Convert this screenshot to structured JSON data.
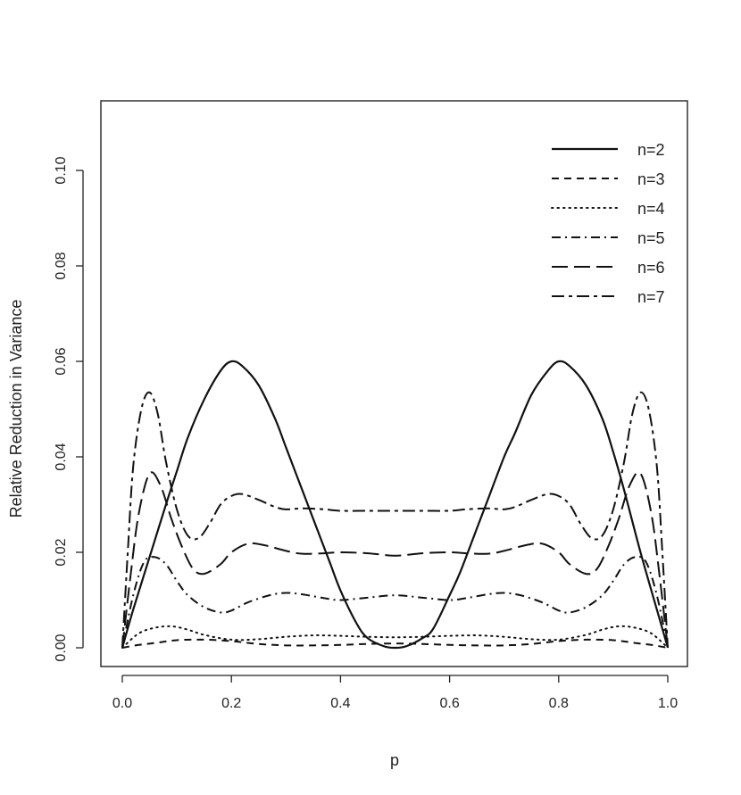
{
  "chart_data": {
    "type": "line",
    "title": "",
    "xlabel": "p",
    "ylabel": "Relative Reduction in Variance",
    "xlim": [
      0.0,
      1.0
    ],
    "ylim": [
      0.0,
      0.11
    ],
    "xticks": [
      "0.0",
      "0.2",
      "0.4",
      "0.6",
      "0.8",
      "1.0"
    ],
    "yticks": [
      "0.00",
      "0.02",
      "0.04",
      "0.06",
      "0.08",
      "0.10"
    ],
    "legend_position": "top-right",
    "grid": false,
    "series": [
      {
        "name": "n=2",
        "dash": "solid",
        "x": [
          0,
          0.02,
          0.05,
          0.08,
          0.1,
          0.12,
          0.15,
          0.18,
          0.2,
          0.22,
          0.25,
          0.28,
          0.3,
          0.33,
          0.35,
          0.38,
          0.4,
          0.43,
          0.45,
          0.48,
          0.5,
          0.52,
          0.55,
          0.57,
          0.6,
          0.62,
          0.65,
          0.67,
          0.7,
          0.72,
          0.75,
          0.78,
          0.8,
          0.82,
          0.85,
          0.88,
          0.9,
          0.92,
          0.95,
          0.98,
          1.0
        ],
        "y": [
          0,
          0.008,
          0.019,
          0.03,
          0.037,
          0.044,
          0.052,
          0.058,
          0.06,
          0.059,
          0.055,
          0.048,
          0.042,
          0.033,
          0.027,
          0.018,
          0.012,
          0.005,
          0.002,
          0.0003,
          0,
          0.0003,
          0.002,
          0.004,
          0.011,
          0.016,
          0.025,
          0.031,
          0.04,
          0.045,
          0.053,
          0.058,
          0.06,
          0.059,
          0.055,
          0.048,
          0.041,
          0.033,
          0.02,
          0.008,
          0
        ]
      },
      {
        "name": "n=3",
        "dash": "dashed",
        "x": [
          0,
          0.03,
          0.06,
          0.1,
          0.15,
          0.2,
          0.25,
          0.3,
          0.35,
          0.4,
          0.45,
          0.5,
          0.55,
          0.6,
          0.65,
          0.7,
          0.75,
          0.8,
          0.85,
          0.9,
          0.94,
          0.97,
          1.0
        ],
        "y": [
          0,
          0.0006,
          0.001,
          0.0016,
          0.0017,
          0.0014,
          0.0008,
          0.0005,
          0.0005,
          0.0006,
          0.0008,
          0.0009,
          0.0008,
          0.0006,
          0.0005,
          0.0005,
          0.0008,
          0.0014,
          0.0017,
          0.0016,
          0.001,
          0.0006,
          0
        ]
      },
      {
        "name": "n=4",
        "dash": "dotted",
        "x": [
          0,
          0.03,
          0.06,
          0.09,
          0.12,
          0.15,
          0.2,
          0.25,
          0.3,
          0.35,
          0.4,
          0.45,
          0.5,
          0.55,
          0.6,
          0.65,
          0.7,
          0.75,
          0.8,
          0.85,
          0.88,
          0.91,
          0.94,
          0.97,
          1.0
        ],
        "y": [
          0,
          0.003,
          0.0042,
          0.0045,
          0.0038,
          0.0027,
          0.0017,
          0.0018,
          0.0023,
          0.0026,
          0.0025,
          0.0023,
          0.0022,
          0.0023,
          0.0025,
          0.0026,
          0.0023,
          0.0018,
          0.0017,
          0.0027,
          0.0038,
          0.0045,
          0.0042,
          0.003,
          0
        ]
      },
      {
        "name": "n=5",
        "dash": "dashdot",
        "x": [
          0,
          0.02,
          0.04,
          0.06,
          0.08,
          0.1,
          0.12,
          0.15,
          0.18,
          0.2,
          0.23,
          0.27,
          0.3,
          0.33,
          0.37,
          0.4,
          0.45,
          0.5,
          0.55,
          0.6,
          0.63,
          0.67,
          0.7,
          0.73,
          0.77,
          0.8,
          0.82,
          0.85,
          0.88,
          0.9,
          0.92,
          0.94,
          0.96,
          0.98,
          1.0
        ],
        "y": [
          0,
          0.011,
          0.018,
          0.019,
          0.0175,
          0.014,
          0.011,
          0.0085,
          0.0074,
          0.0078,
          0.0095,
          0.011,
          0.0115,
          0.0112,
          0.0104,
          0.01,
          0.0105,
          0.011,
          0.0105,
          0.01,
          0.0104,
          0.0112,
          0.0115,
          0.011,
          0.0095,
          0.0078,
          0.0074,
          0.0085,
          0.011,
          0.014,
          0.0175,
          0.019,
          0.018,
          0.011,
          0
        ]
      },
      {
        "name": "n=6",
        "dash": "longdash",
        "x": [
          0,
          0.015,
          0.03,
          0.05,
          0.07,
          0.09,
          0.11,
          0.13,
          0.15,
          0.18,
          0.2,
          0.23,
          0.26,
          0.3,
          0.33,
          0.37,
          0.4,
          0.45,
          0.5,
          0.55,
          0.6,
          0.63,
          0.67,
          0.7,
          0.74,
          0.77,
          0.8,
          0.82,
          0.85,
          0.87,
          0.89,
          0.91,
          0.93,
          0.95,
          0.97,
          0.985,
          1.0
        ],
        "y": [
          0,
          0.015,
          0.028,
          0.0365,
          0.034,
          0.027,
          0.021,
          0.0165,
          0.0155,
          0.0175,
          0.02,
          0.0218,
          0.0215,
          0.0203,
          0.0197,
          0.0198,
          0.02,
          0.0198,
          0.0193,
          0.0198,
          0.02,
          0.0198,
          0.0197,
          0.0203,
          0.0215,
          0.0218,
          0.02,
          0.0175,
          0.0155,
          0.0165,
          0.021,
          0.027,
          0.034,
          0.0365,
          0.028,
          0.015,
          0
        ]
      },
      {
        "name": "n=7",
        "dash": "twodash",
        "x": [
          0,
          0.01,
          0.02,
          0.035,
          0.05,
          0.065,
          0.08,
          0.1,
          0.12,
          0.14,
          0.16,
          0.18,
          0.2,
          0.22,
          0.25,
          0.28,
          0.3,
          0.33,
          0.37,
          0.4,
          0.45,
          0.5,
          0.55,
          0.6,
          0.63,
          0.67,
          0.7,
          0.72,
          0.75,
          0.78,
          0.8,
          0.82,
          0.84,
          0.86,
          0.88,
          0.9,
          0.92,
          0.935,
          0.95,
          0.965,
          0.98,
          0.99,
          1.0
        ],
        "y": [
          0,
          0.02,
          0.038,
          0.05,
          0.0535,
          0.049,
          0.039,
          0.029,
          0.0235,
          0.023,
          0.026,
          0.03,
          0.0318,
          0.0322,
          0.031,
          0.0295,
          0.029,
          0.0292,
          0.029,
          0.0287,
          0.0287,
          0.0287,
          0.0287,
          0.0287,
          0.029,
          0.0292,
          0.029,
          0.0295,
          0.031,
          0.0322,
          0.0318,
          0.03,
          0.026,
          0.023,
          0.0235,
          0.029,
          0.039,
          0.049,
          0.0535,
          0.05,
          0.038,
          0.02,
          0
        ]
      }
    ]
  }
}
